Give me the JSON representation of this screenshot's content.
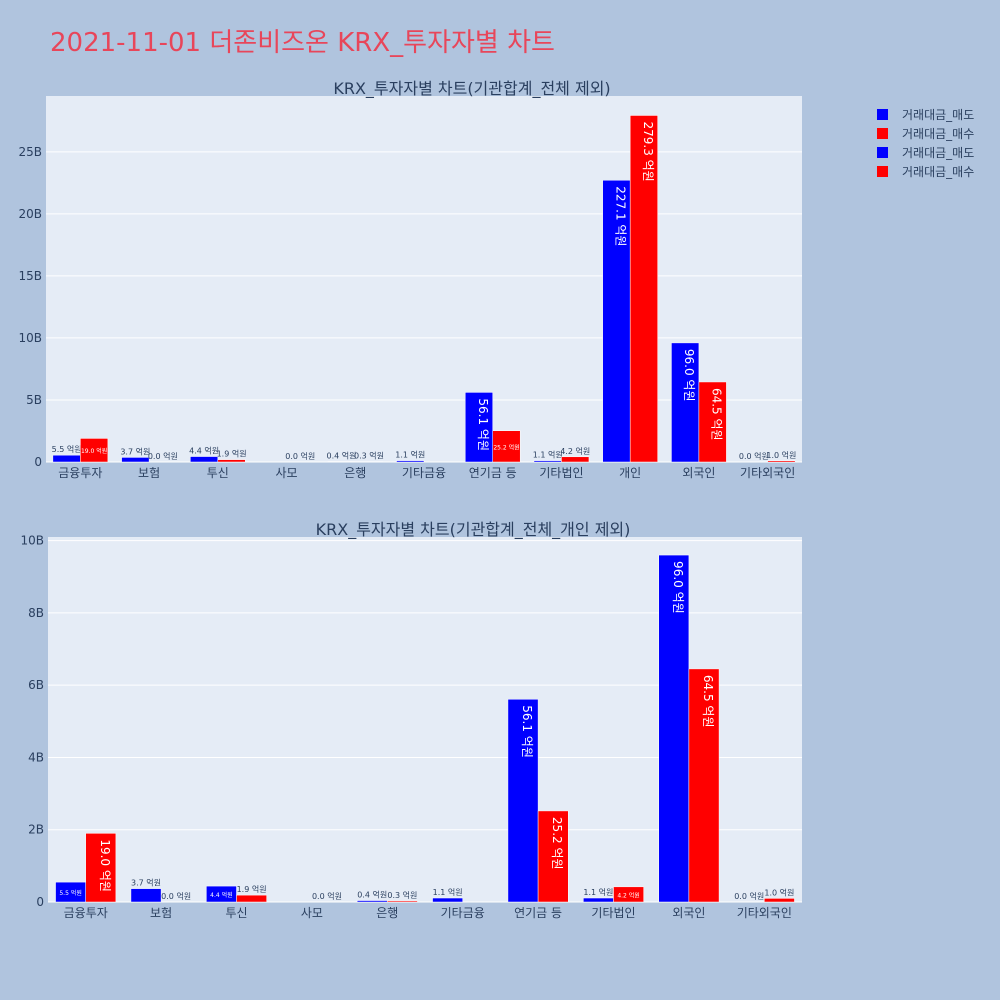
{
  "title": "2021-11-01 더존비즈온 KRX_투자자별 차트",
  "colors": {
    "sell": "#0000ff",
    "buy": "#ff0000",
    "plot_bg": "#e5ecf6",
    "paper_bg": "#b0c4de"
  },
  "legend": [
    {
      "name": "거래대금_매도",
      "color": "#0000ff"
    },
    {
      "name": "거래대금_매수",
      "color": "#ff0000"
    },
    {
      "name": "거래대금_매도",
      "color": "#0000ff"
    },
    {
      "name": "거래대금_매수",
      "color": "#ff0000"
    }
  ],
  "chart_data": [
    {
      "type": "bar",
      "title": "KRX_투자자별 차트(기관합계_전체 제외)",
      "categories": [
        "금융투자",
        "보험",
        "투신",
        "사모",
        "은행",
        "기타금융",
        "연기금 등",
        "기타법인",
        "개인",
        "외국인",
        "기타외국인"
      ],
      "series": [
        {
          "name": "거래대금_매도",
          "values": [
            0.55,
            0.37,
            0.44,
            0.0,
            0.04,
            0.11,
            5.61,
            0.11,
            22.71,
            9.6,
            0.0
          ],
          "labels": [
            "5.5 억원",
            "3.7 억원",
            "4.4 억원",
            "",
            "0.4 억원",
            "1.1 억원",
            "56.1 억원",
            "1.1 억원",
            "227.1 억원",
            "96.0 억원",
            "0.0 억원"
          ]
        },
        {
          "name": "거래대금_매수",
          "values": [
            1.9,
            0.0,
            0.19,
            0.0,
            0.03,
            0.0,
            2.52,
            0.42,
            27.93,
            6.45,
            0.1
          ],
          "labels": [
            "19.0 억원",
            "0.0 억원",
            "1.9 억원",
            "0.0 억원",
            "0.3 억원",
            "",
            "25.2 억원",
            "4.2 억원",
            "279.3 억원",
            "64.5 억원",
            "1.0 억원"
          ]
        }
      ],
      "ylim": [
        0,
        29.5
      ],
      "yticks": [
        0,
        5,
        10,
        15,
        20,
        25
      ],
      "ytick_labels": [
        "0",
        "5B",
        "10B",
        "15B",
        "20B",
        "25B"
      ],
      "xlabel": "",
      "ylabel": ""
    },
    {
      "type": "bar",
      "title": "KRX_투자자별 차트(기관합계_전체_개인 제외)",
      "categories": [
        "금융투자",
        "보험",
        "투신",
        "사모",
        "은행",
        "기타금융",
        "연기금 등",
        "기타법인",
        "외국인",
        "기타외국인"
      ],
      "series": [
        {
          "name": "거래대금_매도",
          "values": [
            0.55,
            0.37,
            0.44,
            0.0,
            0.04,
            0.11,
            5.61,
            0.11,
            9.6,
            0.0
          ],
          "labels": [
            "5.5 억원",
            "3.7 억원",
            "4.4 억원",
            "",
            "0.4 억원",
            "1.1 억원",
            "56.1 억원",
            "1.1 억원",
            "96.0 억원",
            "0.0 억원"
          ]
        },
        {
          "name": "거래대금_매수",
          "values": [
            1.9,
            0.0,
            0.19,
            0.0,
            0.03,
            0.0,
            2.52,
            0.42,
            6.45,
            0.1
          ],
          "labels": [
            "19.0 억원",
            "0.0 억원",
            "1.9 억원",
            "0.0 억원",
            "0.3 억원",
            "",
            "25.2 억원",
            "4.2 억원",
            "64.5 억원",
            "1.0 억원"
          ]
        }
      ],
      "ylim": [
        0,
        10.1
      ],
      "yticks": [
        0,
        2,
        4,
        6,
        8,
        10
      ],
      "ytick_labels": [
        "0",
        "2B",
        "4B",
        "6B",
        "8B",
        "10B"
      ],
      "xlabel": "",
      "ylabel": ""
    }
  ]
}
